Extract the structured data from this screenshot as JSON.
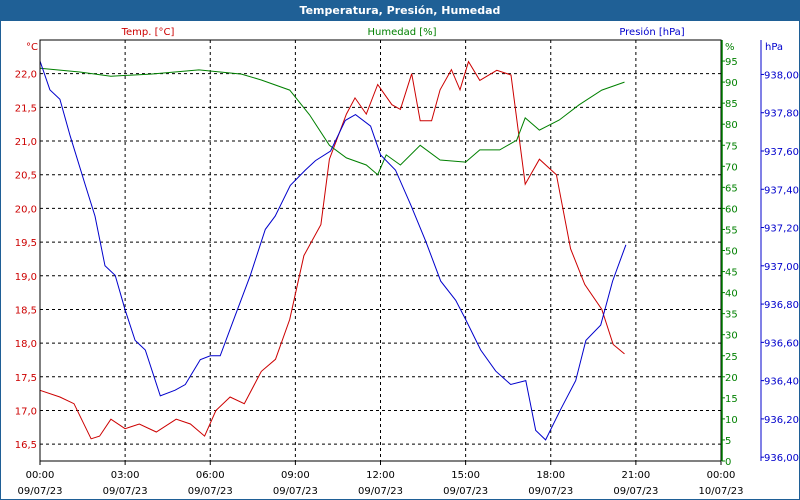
{
  "window": {
    "title": "Temperatura, Presión, Humedad"
  },
  "chart_data": {
    "type": "line",
    "title": "Temperatura, Presión, Humedad",
    "x_unit": "hours since 09/07/23 00:00",
    "xlim": [
      0,
      24
    ],
    "x_ticks": [
      {
        "t": 0,
        "time": "00:00",
        "date": "09/07/23"
      },
      {
        "t": 3,
        "time": "03:00",
        "date": "09/07/23"
      },
      {
        "t": 6,
        "time": "06:00",
        "date": "09/07/23"
      },
      {
        "t": 9,
        "time": "09:00",
        "date": "09/07/23"
      },
      {
        "t": 12,
        "time": "12:00",
        "date": "09/07/23"
      },
      {
        "t": 15,
        "time": "15:00",
        "date": "09/07/23"
      },
      {
        "t": 18,
        "time": "18:00",
        "date": "09/07/23"
      },
      {
        "t": 21,
        "time": "21:00",
        "date": "09/07/23"
      },
      {
        "t": 24,
        "time": "00:00",
        "date": "10/07/23"
      }
    ],
    "axes": {
      "temp": {
        "legend": "Temp. [°C]",
        "unit": "°C",
        "color": "#cc0000",
        "ylim": [
          16.25,
          22.5
        ],
        "ticks": [
          "16,5",
          "17,0",
          "17,5",
          "18,0",
          "18,5",
          "19,0",
          "19,5",
          "20,0",
          "20,5",
          "21,0",
          "21,5",
          "22,0"
        ],
        "tick_values": [
          16.5,
          17,
          17.5,
          18,
          18.5,
          19,
          19.5,
          20,
          20.5,
          21,
          21.5,
          22
        ]
      },
      "hum": {
        "legend": "Humedad [%]",
        "unit": "%",
        "color": "#008000",
        "ylim": [
          0,
          100
        ],
        "ticks": [
          "0",
          "5",
          "10",
          "15",
          "20",
          "25",
          "30",
          "35",
          "40",
          "45",
          "50",
          "55",
          "60",
          "65",
          "70",
          "75",
          "80",
          "85",
          "90",
          "95"
        ],
        "tick_values": [
          0,
          5,
          10,
          15,
          20,
          25,
          30,
          35,
          40,
          45,
          50,
          55,
          60,
          65,
          70,
          75,
          80,
          85,
          90,
          95
        ]
      },
      "pres": {
        "legend": "Presión [hPa]",
        "unit": "hPa",
        "color": "#0000cc",
        "ylim": [
          935.98,
          938.18
        ],
        "ticks": [
          "936,00",
          "936,20",
          "936,40",
          "936,60",
          "936,80",
          "937,00",
          "937,20",
          "937,40",
          "937,60",
          "937,80",
          "938,00"
        ],
        "tick_values": [
          936,
          936.2,
          936.4,
          936.6,
          936.8,
          937,
          937.2,
          937.4,
          937.6,
          937.8,
          938
        ]
      }
    },
    "series": [
      {
        "name": "Temp. [°C]",
        "axis": "temp",
        "x": [
          0,
          0.7,
          1.2,
          1.8,
          2.1,
          2.5,
          3.0,
          3.5,
          4.1,
          4.8,
          5.3,
          5.8,
          6.2,
          6.7,
          7.2,
          7.8,
          8.3,
          8.8,
          9.3,
          9.9,
          10.2,
          10.8,
          11.1,
          11.5,
          11.9,
          12.4,
          12.7,
          13.1,
          13.4,
          13.8,
          14.1,
          14.5,
          14.8,
          15.1,
          15.5,
          16.1,
          16.6,
          17.1,
          17.6,
          18.2,
          18.7,
          19.2,
          19.8,
          20.2,
          20.6
        ],
        "y": [
          17.3,
          17.2,
          17.1,
          16.58,
          16.62,
          16.87,
          16.73,
          16.8,
          16.68,
          16.87,
          16.8,
          16.62,
          17.0,
          17.2,
          17.1,
          17.58,
          17.76,
          18.35,
          19.3,
          19.76,
          20.73,
          21.4,
          21.64,
          21.4,
          21.84,
          21.54,
          21.47,
          22.0,
          21.3,
          21.3,
          21.76,
          22.06,
          21.76,
          22.18,
          21.9,
          22.05,
          21.98,
          20.36,
          20.73,
          20.5,
          19.4,
          18.87,
          18.5,
          17.98,
          17.84
        ]
      },
      {
        "name": "Humedad [%]",
        "axis": "hum",
        "x": [
          0,
          1.4,
          2.5,
          3.9,
          5.6,
          7.1,
          7.8,
          8.8,
          9.5,
          10.2,
          10.8,
          11.5,
          11.9,
          12.2,
          12.7,
          13.4,
          14.1,
          15.0,
          15.5,
          16.2,
          16.8,
          17.1,
          17.6,
          18.3,
          19.0,
          19.8,
          20.6
        ],
        "y": [
          93.3,
          92.4,
          91.4,
          91.9,
          92.9,
          91.9,
          90.5,
          88.1,
          82.2,
          75,
          72,
          70.3,
          68,
          72.7,
          70.3,
          75,
          71.5,
          71,
          73.9,
          73.9,
          76.2,
          81.5,
          78.6,
          81,
          84.6,
          88.1,
          90
        ]
      },
      {
        "name": "Presión [hPa]",
        "axis": "pres",
        "x": [
          0,
          0.35,
          0.7,
          1.06,
          1.6,
          1.94,
          2.29,
          2.65,
          3.0,
          3.35,
          3.71,
          4.24,
          4.76,
          5.12,
          5.65,
          6.0,
          6.35,
          6.88,
          7.41,
          7.94,
          8.29,
          8.82,
          9.35,
          9.71,
          10.24,
          10.76,
          11.12,
          11.65,
          12.0,
          12.53,
          13.06,
          13.59,
          14.12,
          14.65,
          15.0,
          15.53,
          16.06,
          16.59,
          17.12,
          17.47,
          17.82,
          18.35,
          18.88,
          19.24,
          19.76,
          20.18,
          20.65
        ],
        "y": [
          938.07,
          937.92,
          937.87,
          937.68,
          937.42,
          937.26,
          937.0,
          936.95,
          936.77,
          936.61,
          936.56,
          936.32,
          936.35,
          936.38,
          936.51,
          936.53,
          936.53,
          936.74,
          936.95,
          937.19,
          937.26,
          937.42,
          937.5,
          937.55,
          937.6,
          937.76,
          937.79,
          937.73,
          937.58,
          937.5,
          937.32,
          937.13,
          936.92,
          936.82,
          936.72,
          936.56,
          936.45,
          936.38,
          936.4,
          936.14,
          936.09,
          936.25,
          936.4,
          936.61,
          936.69,
          936.92,
          937.11
        ]
      }
    ]
  }
}
